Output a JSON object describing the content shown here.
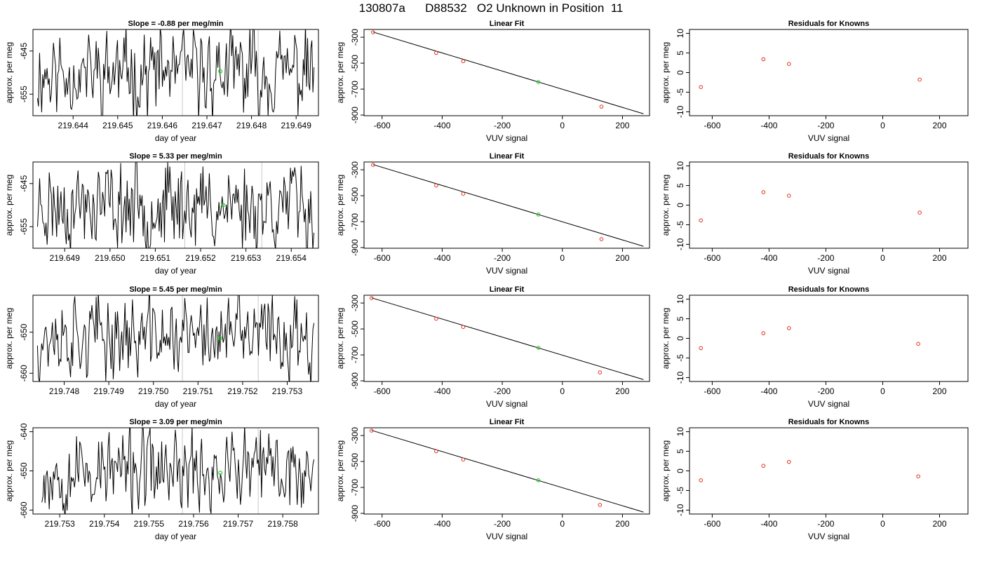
{
  "page_title": "130807a      D88532   O2 Unknown in Position  11",
  "colors": {
    "trace": "#000000",
    "known_point": "#e0301e",
    "unknown_point": "#22cc22",
    "marker_line": "#c8c8c8",
    "axis": "#000000"
  },
  "chart_data": [
    {
      "type": "line",
      "row": 1,
      "title": "Slope =  -0.88  per meg/min",
      "xlabel": "day of year",
      "ylabel": "approx. per meg",
      "xlim": [
        219.6431,
        219.6495
      ],
      "ylim": [
        -660,
        -640
      ],
      "xticks": [
        "219.644",
        "219.645",
        "219.646",
        "219.647",
        "219.648",
        "219.649"
      ],
      "yticks": [
        "-645",
        "-655"
      ],
      "markers": [
        219.64645,
        219.64815
      ],
      "unknown_point": {
        "x": 219.6473,
        "y": -649.7
      },
      "series": {
        "x_start": 219.6432,
        "x_end": 219.6494,
        "center": -650,
        "amplitude": 9,
        "points": 260,
        "seed": 11
      }
    },
    {
      "type": "scatter",
      "row": 1,
      "title": "Linear Fit",
      "xlabel": "VUV signal",
      "ylabel": "approx. per meg",
      "xlim": [
        -660,
        290
      ],
      "ylim": [
        -905,
        -240
      ],
      "xticks": [
        "-600",
        "-400",
        "-200",
        "0",
        "200"
      ],
      "yticks": [
        "-300",
        "-500",
        "-700",
        "-900"
      ],
      "knowns": [
        {
          "x": -630,
          "y": -262
        },
        {
          "x": -420,
          "y": -421
        },
        {
          "x": -330,
          "y": -485
        },
        {
          "x": 130,
          "y": -835
        }
      ],
      "unknown": {
        "x": -80,
        "y": -645
      },
      "fit_line": {
        "x0": -630,
        "y0": -260,
        "x1": 270,
        "y1": -890
      }
    },
    {
      "type": "scatter",
      "row": 1,
      "title": "Residuals for Knowns",
      "xlabel": "VUV signal",
      "ylabel": "approx. per meg",
      "xlim": [
        -680,
        300
      ],
      "ylim": [
        -11,
        11
      ],
      "xticks": [
        "-600",
        "-400",
        "-200",
        "0",
        "200"
      ],
      "yticks": [
        "10",
        "5",
        "0",
        "-5",
        "-10"
      ],
      "points": [
        {
          "x": -640,
          "y": -3.7
        },
        {
          "x": -420,
          "y": 3.4
        },
        {
          "x": -330,
          "y": 2.2
        },
        {
          "x": 130,
          "y": -1.8
        }
      ]
    },
    {
      "type": "line",
      "row": 2,
      "title": "Slope =  5.33  per meg/min",
      "xlabel": "day of year",
      "ylabel": "approx. per meg",
      "xlim": [
        219.6483,
        219.6546
      ],
      "ylim": [
        -660,
        -640
      ],
      "xticks": [
        "219.649",
        "219.650",
        "219.651",
        "219.652",
        "219.653",
        "219.654"
      ],
      "yticks": [
        "-645",
        "-655"
      ],
      "markers": [
        219.65165,
        219.65335
      ],
      "unknown_point": {
        "x": 219.6525,
        "y": -650
      },
      "series": {
        "x_start": 219.6484,
        "x_end": 219.6545,
        "center": -650,
        "amplitude": 9,
        "points": 260,
        "seed": 23
      }
    },
    {
      "type": "scatter",
      "row": 2,
      "title": "Linear Fit",
      "xlabel": "VUV signal",
      "ylabel": "approx. per meg",
      "xlim": [
        -660,
        290
      ],
      "ylim": [
        -905,
        -240
      ],
      "xticks": [
        "-600",
        "-400",
        "-200",
        "0",
        "200"
      ],
      "yticks": [
        "-300",
        "-500",
        "-700",
        "-900"
      ],
      "knowns": [
        {
          "x": -630,
          "y": -262
        },
        {
          "x": -420,
          "y": -421
        },
        {
          "x": -330,
          "y": -485
        },
        {
          "x": 130,
          "y": -835
        }
      ],
      "unknown": {
        "x": -80,
        "y": -645
      },
      "fit_line": {
        "x0": -630,
        "y0": -260,
        "x1": 270,
        "y1": -890
      }
    },
    {
      "type": "scatter",
      "row": 2,
      "title": "Residuals for Knowns",
      "xlabel": "VUV signal",
      "ylabel": "approx. per meg",
      "xlim": [
        -680,
        300
      ],
      "ylim": [
        -11,
        11
      ],
      "xticks": [
        "-600",
        "-400",
        "-200",
        "0",
        "200"
      ],
      "yticks": [
        "10",
        "5",
        "0",
        "-5",
        "-10"
      ],
      "points": [
        {
          "x": -640,
          "y": -3.9
        },
        {
          "x": -420,
          "y": 3.3
        },
        {
          "x": -330,
          "y": 2.4
        },
        {
          "x": 130,
          "y": -1.9
        }
      ]
    },
    {
      "type": "line",
      "row": 3,
      "title": "Slope =  5.45  per meg/min",
      "xlabel": "day of year",
      "ylabel": "approx. per meg",
      "xlim": [
        219.7473,
        219.7537
      ],
      "ylim": [
        -662,
        -641
      ],
      "xticks": [
        "219.748",
        "219.749",
        "219.750",
        "219.751",
        "219.752",
        "219.753"
      ],
      "yticks": [
        "-650",
        "-660"
      ],
      "markers": [
        219.75065,
        219.75235
      ],
      "unknown_point": {
        "x": 219.7515,
        "y": -651.5
      },
      "series": {
        "x_start": 219.7474,
        "x_end": 219.7536,
        "center": -651,
        "amplitude": 9,
        "points": 260,
        "seed": 37
      }
    },
    {
      "type": "scatter",
      "row": 3,
      "title": "Linear Fit",
      "xlabel": "VUV signal",
      "ylabel": "approx. per meg",
      "xlim": [
        -660,
        290
      ],
      "ylim": [
        -905,
        -240
      ],
      "xticks": [
        "-600",
        "-400",
        "-200",
        "0",
        "200"
      ],
      "yticks": [
        "-300",
        "-500",
        "-700",
        "-900"
      ],
      "knowns": [
        {
          "x": -635,
          "y": -262
        },
        {
          "x": -420,
          "y": -421
        },
        {
          "x": -330,
          "y": -485
        },
        {
          "x": 125,
          "y": -835
        }
      ],
      "unknown": {
        "x": -80,
        "y": -645
      },
      "fit_line": {
        "x0": -635,
        "y0": -260,
        "x1": 270,
        "y1": -890
      }
    },
    {
      "type": "scatter",
      "row": 3,
      "title": "Residuals for Knowns",
      "xlabel": "VUV signal",
      "ylabel": "approx. per meg",
      "xlim": [
        -680,
        300
      ],
      "ylim": [
        -11,
        11
      ],
      "xticks": [
        "-600",
        "-400",
        "-200",
        "0",
        "200"
      ],
      "yticks": [
        "10",
        "5",
        "0",
        "-5",
        "-10"
      ],
      "points": [
        {
          "x": -640,
          "y": -2.5
        },
        {
          "x": -420,
          "y": 1.3
        },
        {
          "x": -330,
          "y": 2.6
        },
        {
          "x": 125,
          "y": -1.4
        }
      ]
    },
    {
      "type": "line",
      "row": 4,
      "title": "Slope =  3.09  per meg/min",
      "xlabel": "day of year",
      "ylabel": "approx. per meg",
      "xlim": [
        219.7524,
        219.7588
      ],
      "ylim": [
        -661,
        -639
      ],
      "xticks": [
        "219.753",
        "219.754",
        "219.755",
        "219.756",
        "219.757",
        "219.758"
      ],
      "yticks": [
        "-640",
        "-650",
        "-660"
      ],
      "markers": [
        219.75575,
        219.75745
      ],
      "unknown_point": {
        "x": 219.7566,
        "y": -650.5
      },
      "series": {
        "x_start": 219.7526,
        "x_end": 219.7587,
        "center": -650,
        "amplitude": 9.5,
        "points": 260,
        "seed": 53
      }
    },
    {
      "type": "scatter",
      "row": 4,
      "title": "Linear Fit",
      "xlabel": "VUV signal",
      "ylabel": "approx. per meg",
      "xlim": [
        -660,
        290
      ],
      "ylim": [
        -905,
        -240
      ],
      "xticks": [
        "-600",
        "-400",
        "-200",
        "0",
        "200"
      ],
      "yticks": [
        "-300",
        "-500",
        "-700",
        "-900"
      ],
      "knowns": [
        {
          "x": -635,
          "y": -262
        },
        {
          "x": -420,
          "y": -421
        },
        {
          "x": -330,
          "y": -485
        },
        {
          "x": 125,
          "y": -835
        }
      ],
      "unknown": {
        "x": -80,
        "y": -645
      },
      "fit_line": {
        "x0": -635,
        "y0": -260,
        "x1": 270,
        "y1": -890
      }
    },
    {
      "type": "scatter",
      "row": 4,
      "title": "Residuals for Knowns",
      "xlabel": "VUV signal",
      "ylabel": "approx. per meg",
      "xlim": [
        -680,
        300
      ],
      "ylim": [
        -11,
        11
      ],
      "xticks": [
        "-600",
        "-400",
        "-200",
        "0",
        "200"
      ],
      "yticks": [
        "10",
        "5",
        "0",
        "-5",
        "-10"
      ],
      "points": [
        {
          "x": -640,
          "y": -2.4
        },
        {
          "x": -420,
          "y": 1.3
        },
        {
          "x": -330,
          "y": 2.3
        },
        {
          "x": 125,
          "y": -1.4
        }
      ]
    }
  ]
}
